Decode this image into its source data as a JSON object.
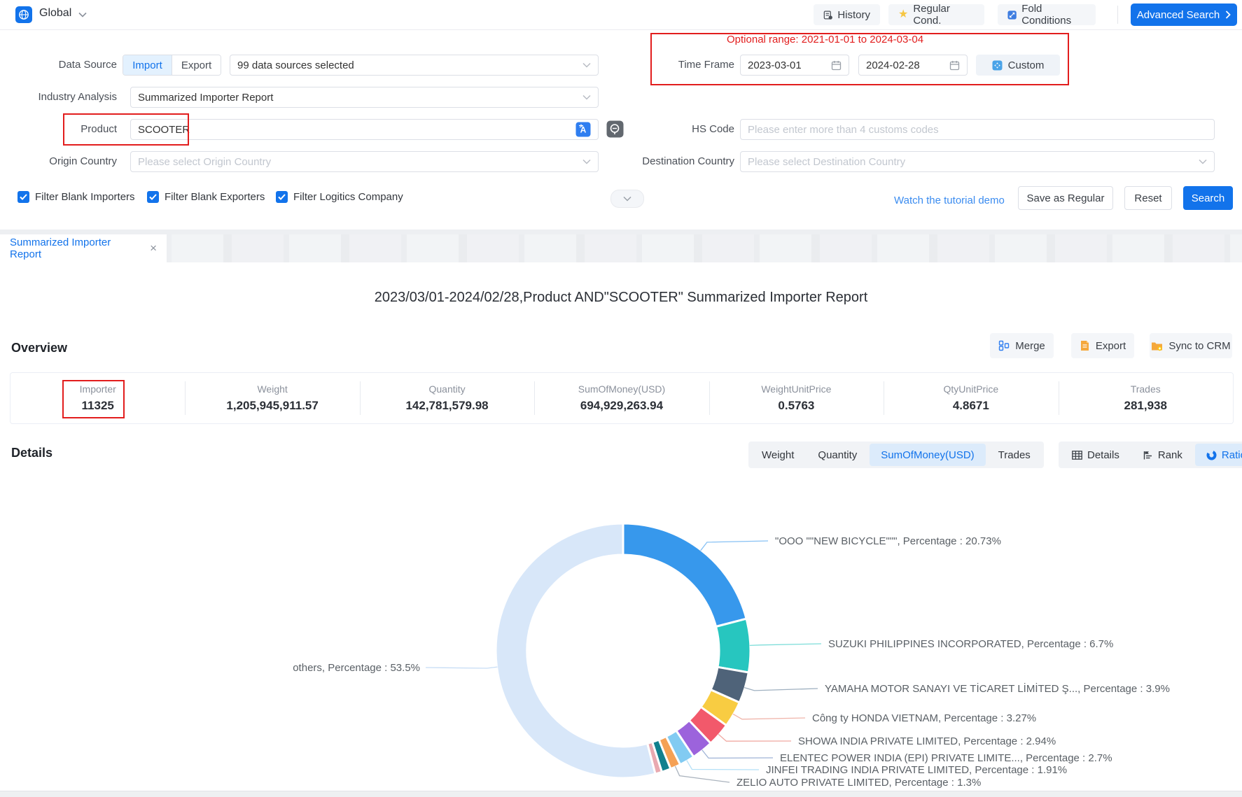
{
  "topbar": {
    "region": "Global",
    "history": "History",
    "regular_cond": "Regular Cond.",
    "fold_conditions": "Fold Conditions",
    "advanced_search": "Advanced Search"
  },
  "form": {
    "data_source_label": "Data Source",
    "import_tab": "Import",
    "export_tab": "Export",
    "sources_value": "99 data sources selected",
    "industry_label": "Industry Analysis",
    "industry_value": "Summarized Importer Report",
    "product_label": "Product",
    "product_value": "SCOOTER",
    "origin_label": "Origin Country",
    "origin_placeholder": "Please select Origin Country",
    "optional_range": "Optional range:  2021-01-01 to 2024-03-04",
    "time_frame_label": "Time Frame",
    "date_from": "2023-03-01",
    "date_to": "2024-02-28",
    "custom_button": "Custom",
    "hs_code_label": "HS Code",
    "hs_code_placeholder": "Please enter more than 4 customs codes",
    "destination_label": "Destination Country",
    "destination_placeholder": "Please select Destination Country",
    "checkboxes": [
      "Filter Blank Importers",
      "Filter Blank Exporters",
      "Filter Logitics Company"
    ],
    "tutorial_link": "Watch the tutorial demo",
    "save_as_regular": "Save as Regular",
    "reset": "Reset",
    "search": "Search"
  },
  "tab": {
    "label": "Summarized Importer Report"
  },
  "report": {
    "title": "2023/03/01-2024/02/28,Product AND\"SCOOTER\" Summarized Importer Report",
    "overview_title": "Overview",
    "merge": "Merge",
    "export": "Export",
    "sync_to_crm": "Sync to CRM",
    "stats": [
      {
        "label": "Importer",
        "value": "11325"
      },
      {
        "label": "Weight",
        "value": "1,205,945,911.57"
      },
      {
        "label": "Quantity",
        "value": "142,781,579.98"
      },
      {
        "label": "SumOfMoney(USD)",
        "value": "694,929,263.94"
      },
      {
        "label": "WeightUnitPrice",
        "value": "0.5763"
      },
      {
        "label": "QtyUnitPrice",
        "value": "4.8671"
      },
      {
        "label": "Trades",
        "value": "281,938"
      }
    ],
    "details_title": "Details",
    "metric_tabs": [
      "Weight",
      "Quantity",
      "SumOfMoney(USD)",
      "Trades"
    ],
    "metric_active": 2,
    "view_tabs": [
      "Details",
      "Rank",
      "Ratio"
    ],
    "view_active": 2
  },
  "colors": {
    "accent": "#1273eb",
    "annotation_red": "#e21d1d"
  },
  "chart_data": {
    "type": "pie",
    "subtype": "donut",
    "label_word": "Percentage",
    "series": [
      {
        "name": "\"OOO \"\"NEW BICYCLE\"\"\"",
        "value": 20.73,
        "color": "#3798ec",
        "label_visible": true
      },
      {
        "name": "SUZUKI PHILIPPINES INCORPORATED",
        "value": 6.7,
        "color": "#27c6bf",
        "label_visible": true
      },
      {
        "name": "YAMAHA MOTOR SANAYI VE TİCARET LİMİTED Ş...",
        "value": 3.9,
        "color": "#4f6379",
        "label_visible": true
      },
      {
        "name": "Công ty HONDA VIETNAM",
        "value": 3.27,
        "color": "#f8cc42",
        "label_visible": true
      },
      {
        "name": "SHOWA INDIA PRIVATE LIMITED",
        "value": 2.94,
        "color": "#f2596b",
        "label_visible": true
      },
      {
        "name": "ELENTEC POWER INDIA (EPI) PRIVATE LIMITE...",
        "value": 2.7,
        "color": "#9c63dc",
        "label_visible": true
      },
      {
        "name": "JINFEI TRADING INDIA PRIVATE LIMITED",
        "value": 1.91,
        "color": "#82cbf2",
        "label_visible": true
      },
      {
        "name": "ZELIO AUTO PRIVATE LIMITED",
        "value": 1.3,
        "color": "#f5a155",
        "label_visible": true
      },
      {
        "name": "",
        "value": 1.15,
        "color": "#12808e",
        "label_visible": false
      },
      {
        "name": "",
        "value": 0.85,
        "color": "#e9a9b0",
        "label_visible": false
      },
      {
        "name": "others",
        "value": 53.5,
        "color": "#d8e7f9",
        "label_visible": true
      }
    ]
  }
}
